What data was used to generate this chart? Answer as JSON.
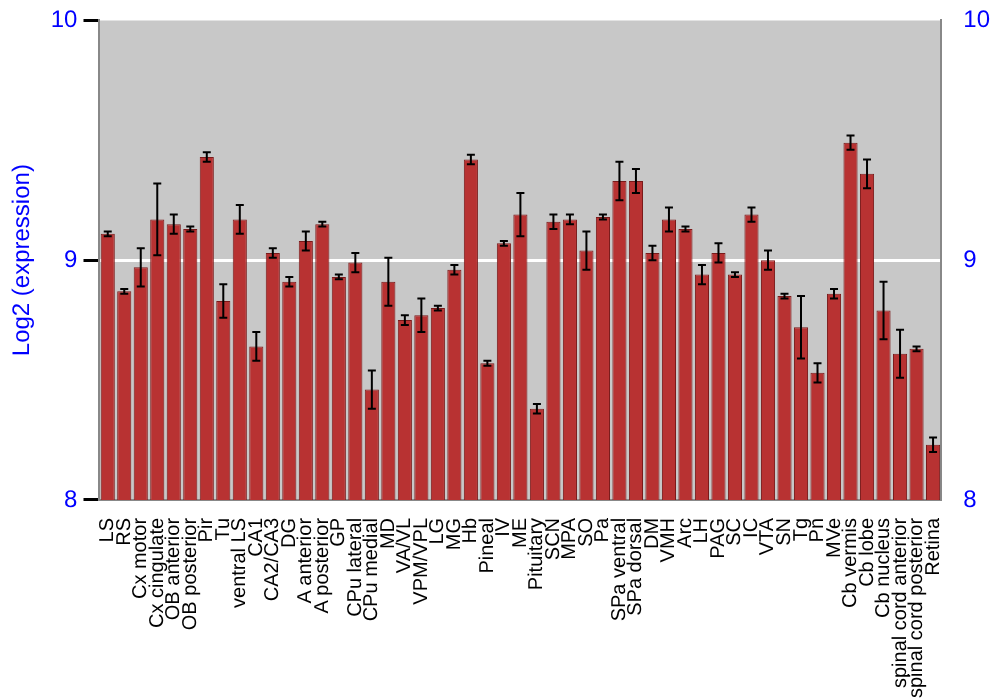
{
  "chart_data": {
    "type": "bar",
    "ylabel": "Log2 (expression)",
    "categories": [
      "LS",
      "RS",
      "Cx motor",
      "Cx cingulate",
      "OB anterior",
      "OB posterior",
      "Pir",
      "Tu",
      "ventral LS",
      "CA1",
      "CA2/CA3",
      "DG",
      "A anterior",
      "A posterior",
      "GP",
      "CPu lateral",
      "CPu medial",
      "MD",
      "VA/VL",
      "VPM/VPL",
      "LG",
      "MG",
      "Hb",
      "Pineal",
      "IV",
      "ME",
      "Pituitary",
      "SCN",
      "MPA",
      "SO",
      "Pa",
      "SPa ventral",
      "SPa dorsal",
      "DM",
      "VMH",
      "Arc",
      "LH",
      "PAG",
      "SC",
      "IC",
      "VTA",
      "SN",
      "Tg",
      "Pn",
      "MVe",
      "Cb vermis",
      "Cb lobe",
      "Cb nucleus",
      "spinal cord anterior",
      "spinal cord posterior",
      "Retina"
    ],
    "values": [
      9.11,
      8.87,
      8.97,
      9.17,
      9.15,
      9.13,
      9.43,
      8.83,
      9.17,
      8.64,
      9.03,
      8.91,
      9.08,
      9.15,
      8.93,
      8.99,
      8.46,
      8.91,
      8.75,
      8.77,
      8.8,
      8.96,
      9.42,
      8.57,
      9.07,
      9.19,
      8.38,
      9.16,
      9.17,
      9.04,
      9.18,
      9.33,
      9.33,
      9.03,
      9.17,
      9.13,
      8.94,
      9.03,
      8.94,
      9.19,
      9.0,
      8.85,
      8.72,
      8.53,
      8.86,
      9.49,
      9.36,
      8.79,
      8.61,
      8.63,
      8.23
    ],
    "errors": [
      0.01,
      0.01,
      0.08,
      0.15,
      0.04,
      0.01,
      0.02,
      0.07,
      0.06,
      0.06,
      0.02,
      0.02,
      0.04,
      0.01,
      0.01,
      0.04,
      0.08,
      0.1,
      0.02,
      0.07,
      0.01,
      0.02,
      0.02,
      0.01,
      0.01,
      0.09,
      0.02,
      0.03,
      0.02,
      0.08,
      0.01,
      0.08,
      0.05,
      0.03,
      0.05,
      0.01,
      0.04,
      0.04,
      0.01,
      0.03,
      0.04,
      0.01,
      0.13,
      0.04,
      0.02,
      0.03,
      0.06,
      0.12,
      0.1,
      0.01,
      0.03
    ],
    "color": "#b83232",
    "ylim": [
      8,
      10
    ],
    "yticks": [
      8,
      9,
      10
    ],
    "y2lim": [
      8,
      10
    ],
    "y2ticks": [
      8,
      9,
      10
    ],
    "grid": "y",
    "legend": false
  }
}
